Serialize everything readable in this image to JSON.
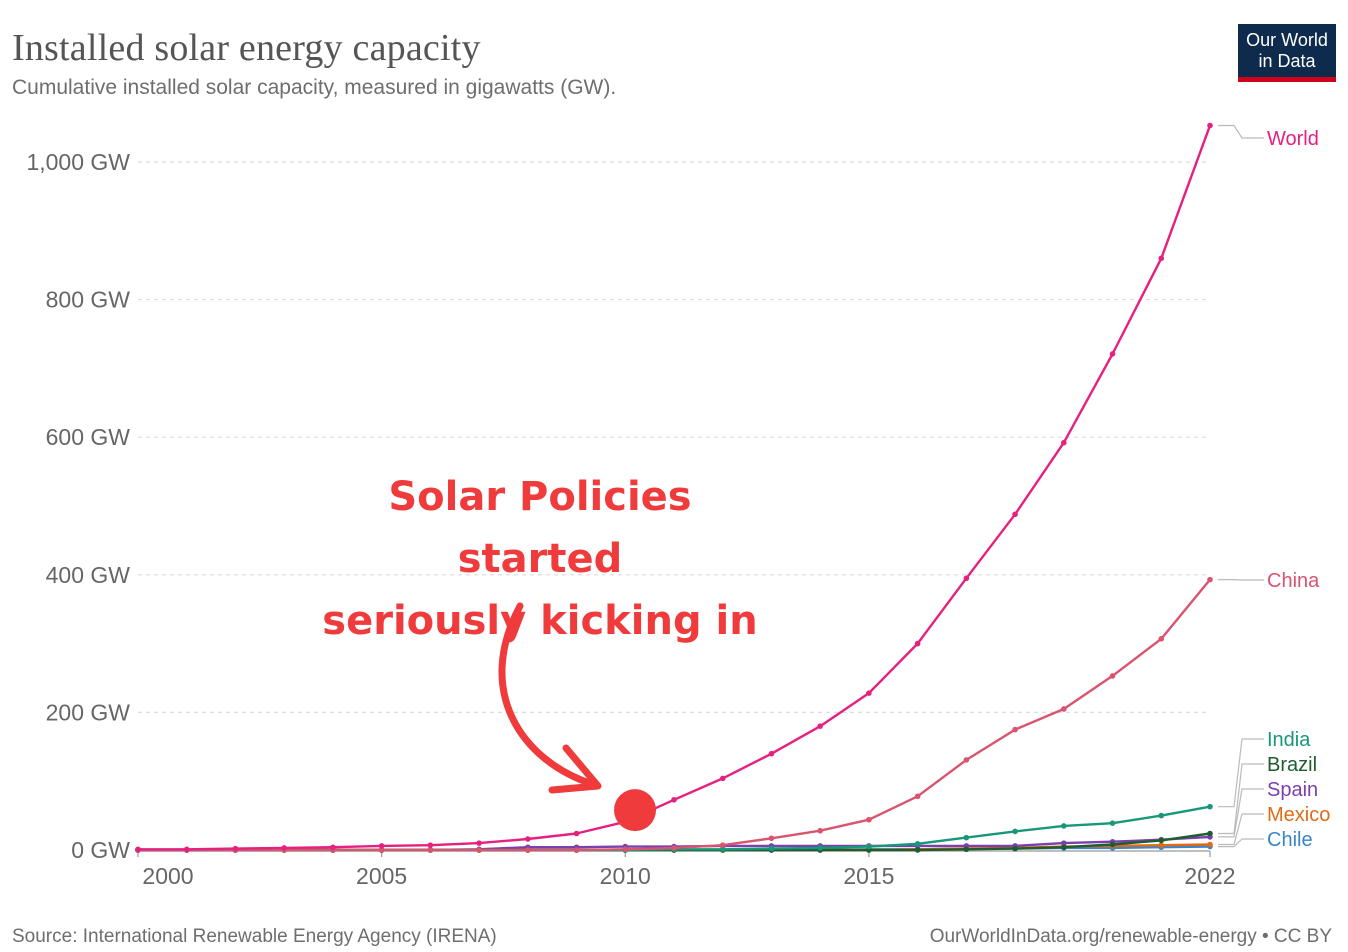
{
  "header": {
    "title": "Installed solar energy capacity",
    "subtitle": "Cumulative installed solar capacity, measured in gigawatts (GW)."
  },
  "logo": {
    "line1": "Our World",
    "line2": "in Data"
  },
  "footer": {
    "source": "Source: International Renewable Energy Agency (IRENA)",
    "credit": "OurWorldInData.org/renewable-energy • CC BY"
  },
  "annotation": {
    "line1": "Solar Policies started",
    "line2": "seriously kicking in",
    "color": "#ef3b3b"
  },
  "chart_data": {
    "type": "line",
    "title": "Installed solar energy capacity",
    "subtitle": "Cumulative installed solar capacity, measured in gigawatts (GW).",
    "xlim": [
      2000,
      2022
    ],
    "ylim": [
      0,
      1050
    ],
    "y_ticks": [
      0,
      200,
      400,
      600,
      800,
      1000
    ],
    "y_tick_labels": [
      "0 GW",
      "200 GW",
      "400 GW",
      "600 GW",
      "800 GW",
      "1,000 GW"
    ],
    "x_ticks": [
      2000,
      2005,
      2010,
      2015,
      2022
    ],
    "x_tick_labels": [
      "2000",
      "2005",
      "2010",
      "2015",
      "2022"
    ],
    "grid": true,
    "legend": "right-end labels",
    "x": [
      2000,
      2001,
      2002,
      2003,
      2004,
      2005,
      2006,
      2007,
      2008,
      2009,
      2010,
      2011,
      2012,
      2013,
      2014,
      2015,
      2016,
      2017,
      2018,
      2019,
      2020,
      2021,
      2022
    ],
    "series": [
      {
        "name": "World",
        "color": "#e6207e",
        "values": [
          1,
          1,
          2,
          3,
          4,
          6,
          7,
          10,
          16,
          24,
          41,
          73,
          104,
          140,
          180,
          228,
          300,
          395,
          488,
          592,
          721,
          860,
          1053
        ]
      },
      {
        "name": "China",
        "color": "#d9546f",
        "values": [
          0,
          0,
          0,
          0,
          0,
          0,
          0,
          0,
          0,
          0,
          1,
          3,
          7,
          17,
          28,
          44,
          78,
          131,
          175,
          205,
          253,
          307,
          393
        ]
      },
      {
        "name": "India",
        "color": "#18977a",
        "values": [
          0,
          0,
          0,
          0,
          0,
          0,
          0,
          0,
          0,
          0,
          0,
          1,
          1,
          2,
          3,
          5,
          9,
          18,
          27,
          35,
          39,
          50,
          63
        ]
      },
      {
        "name": "Brazil",
        "color": "#1d5d2e",
        "values": [
          0,
          0,
          0,
          0,
          0,
          0,
          0,
          0,
          0,
          0,
          0,
          0,
          0,
          0,
          0,
          0,
          0,
          1,
          2,
          4,
          8,
          14,
          24
        ]
      },
      {
        "name": "Spain",
        "color": "#7b3fb0",
        "values": [
          0,
          0,
          0,
          0,
          0,
          0,
          0,
          1,
          4,
          4,
          5,
          5,
          6,
          6,
          6,
          6,
          6,
          6,
          6,
          10,
          12,
          15,
          19
        ]
      },
      {
        "name": "Mexico",
        "color": "#e06b16",
        "values": [
          0,
          0,
          0,
          0,
          0,
          0,
          0,
          0,
          0,
          0,
          0,
          0,
          0,
          0,
          0,
          0,
          1,
          2,
          3,
          5,
          6,
          7,
          8
        ]
      },
      {
        "name": "Chile",
        "color": "#3a86c8",
        "values": [
          0,
          0,
          0,
          0,
          0,
          0,
          0,
          0,
          0,
          0,
          0,
          0,
          0,
          0,
          0,
          1,
          1,
          2,
          2,
          3,
          3,
          4,
          5
        ]
      }
    ],
    "highlight": {
      "x": 2010.2,
      "y": 58,
      "color": "#ef3b3b"
    }
  }
}
